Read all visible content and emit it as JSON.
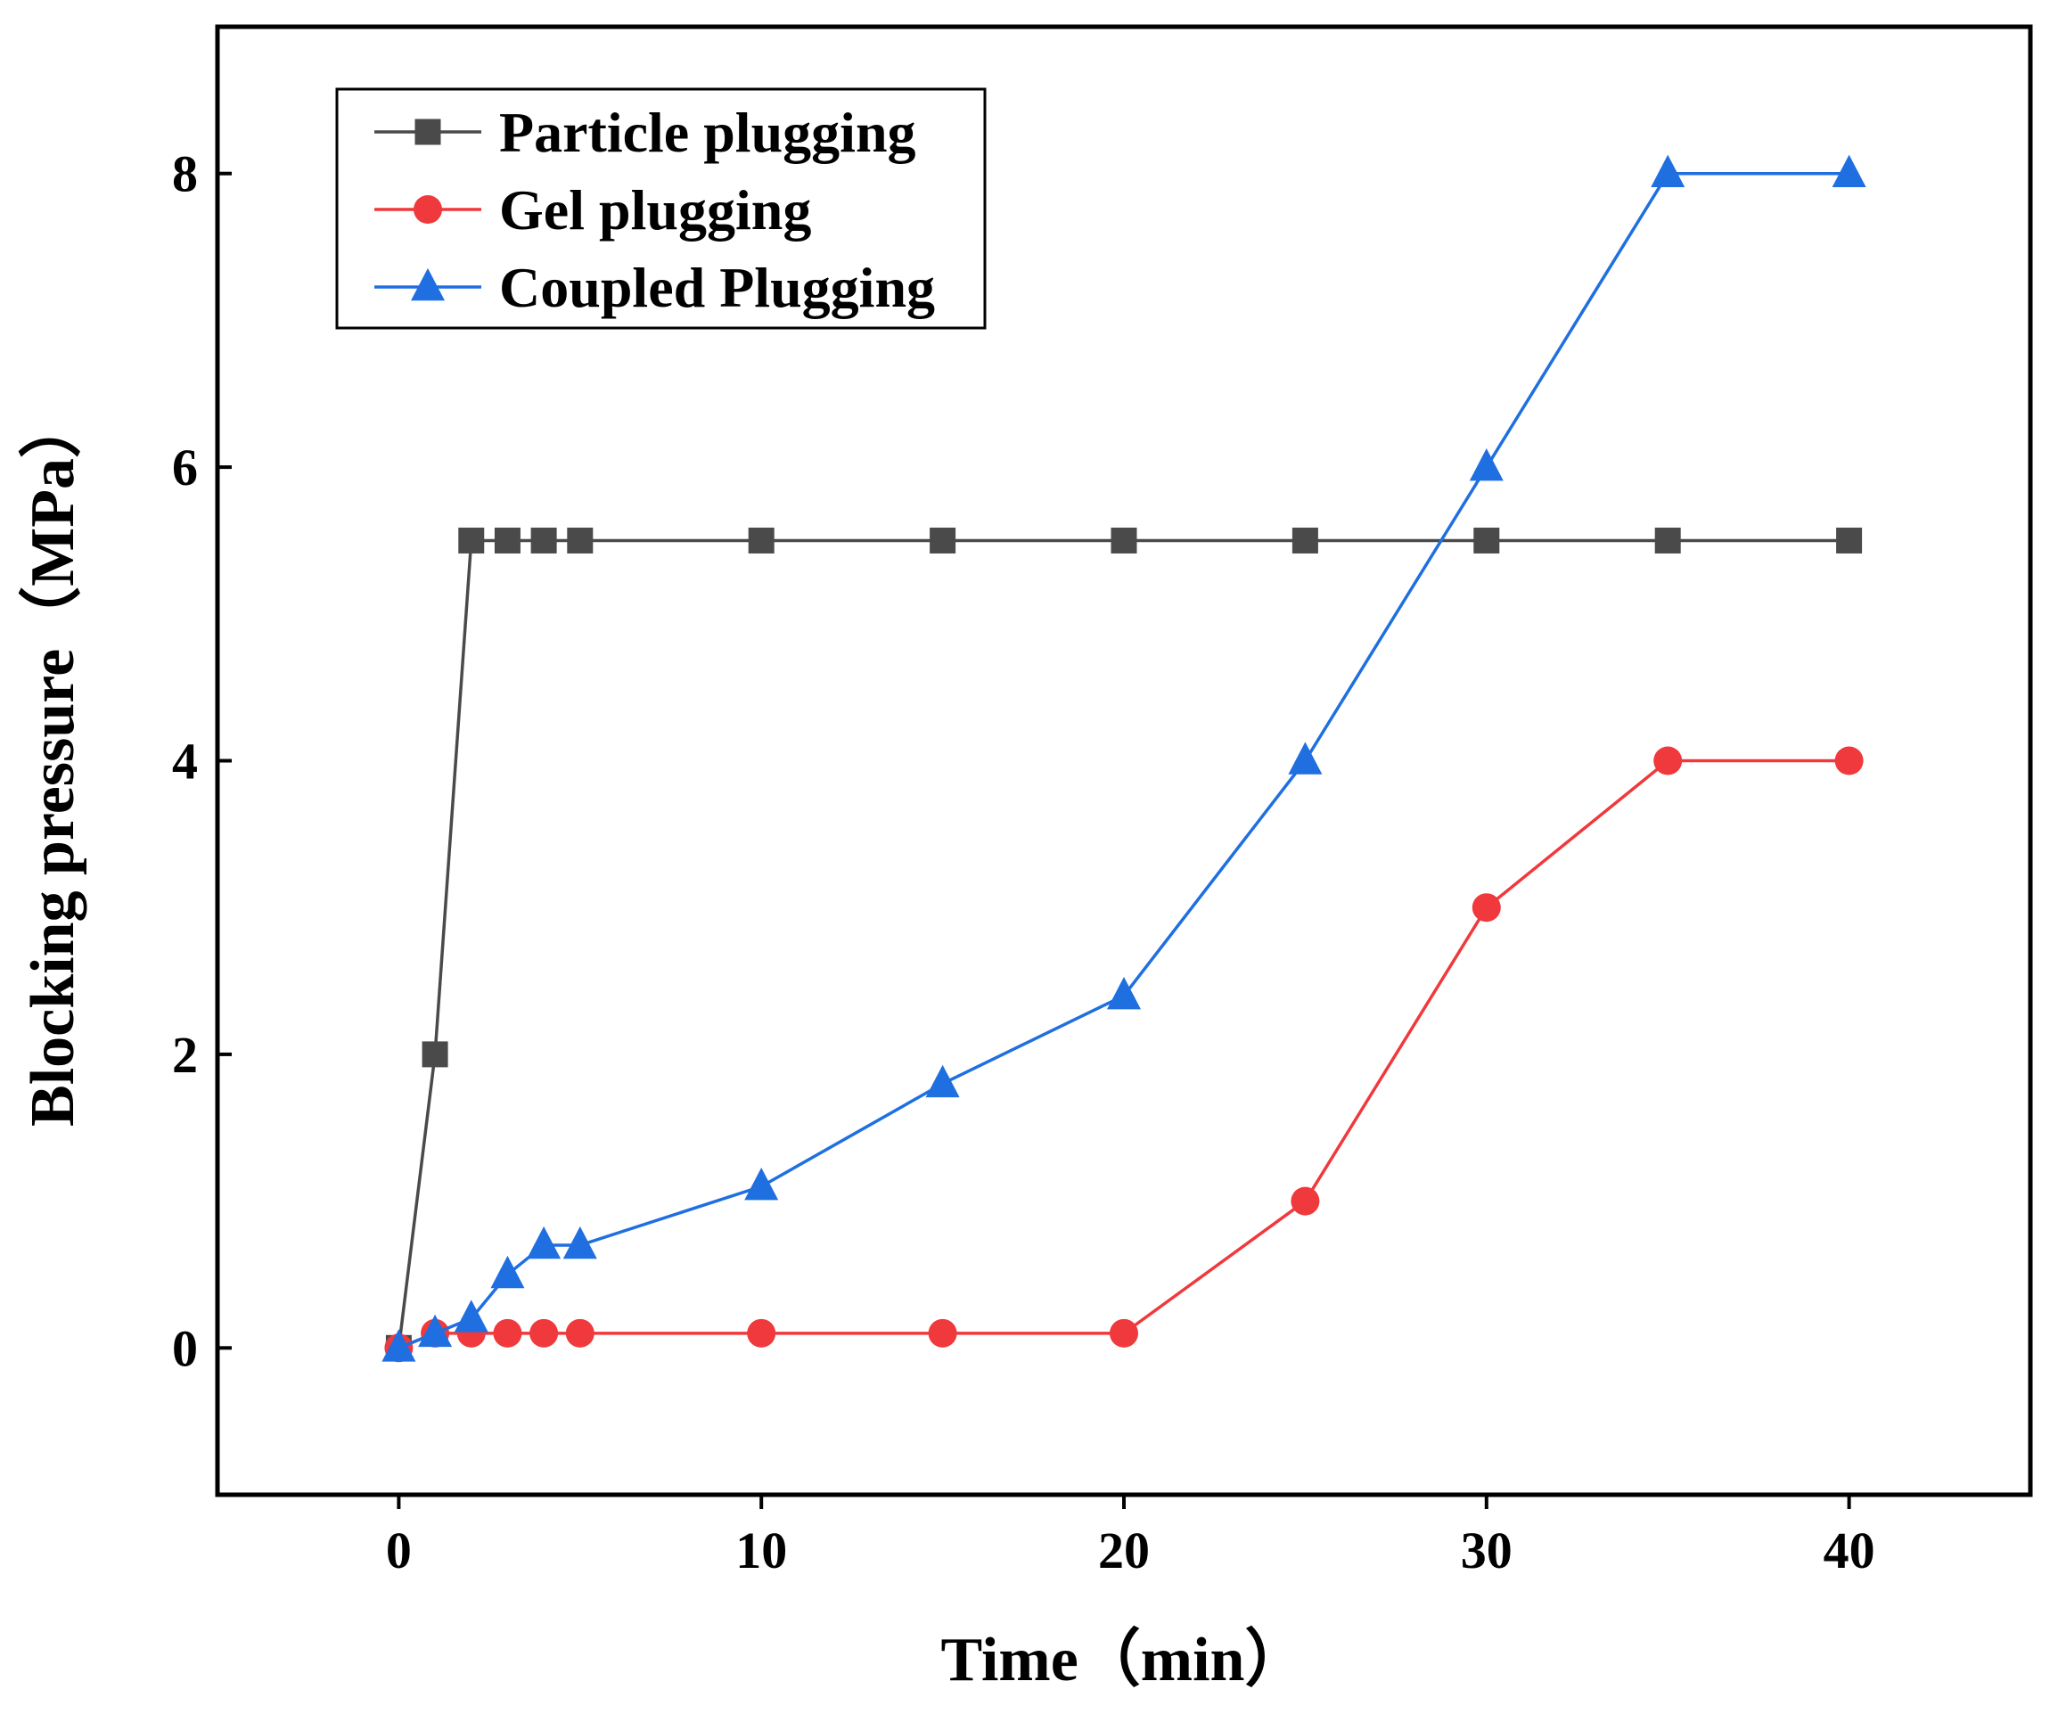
{
  "chart_data": {
    "type": "line",
    "title": "",
    "xlabel": "Time（min）",
    "ylabel": "Blocking pressure（MPa）",
    "xlim": [
      -5,
      45
    ],
    "ylim": [
      -1,
      9
    ],
    "xticks": [
      0,
      10,
      20,
      30,
      40
    ],
    "yticks": [
      0,
      2,
      4,
      6,
      8
    ],
    "xtick_labels": [
      "0",
      "10",
      "20",
      "30",
      "40"
    ],
    "ytick_labels": [
      "0",
      "2",
      "4",
      "6",
      "8"
    ],
    "grid": false,
    "legend_position": "top-left",
    "series": [
      {
        "name": "Particle plugging",
        "color": "#4a4a4a",
        "marker": "square",
        "x": [
          0,
          1,
          2,
          3,
          4,
          5,
          10,
          15,
          20,
          25,
          30,
          35,
          40
        ],
        "y": [
          0,
          2,
          5.5,
          5.5,
          5.5,
          5.5,
          5.5,
          5.5,
          5.5,
          5.5,
          5.5,
          5.5,
          5.5
        ]
      },
      {
        "name": "Gel plugging",
        "color": "#f0393c",
        "marker": "circle",
        "x": [
          0,
          1,
          2,
          3,
          4,
          5,
          10,
          15,
          20,
          25,
          30,
          35,
          40
        ],
        "y": [
          0,
          0.1,
          0.1,
          0.1,
          0.1,
          0.1,
          0.1,
          0.1,
          0.1,
          1,
          3,
          4,
          4
        ]
      },
      {
        "name": "Coupled Plugging",
        "color": "#1f6fe0",
        "marker": "triangle",
        "x": [
          0,
          1,
          2,
          3,
          4,
          5,
          10,
          15,
          20,
          25,
          30,
          35,
          40
        ],
        "y": [
          0,
          0.1,
          0.2,
          0.5,
          0.7,
          0.7,
          1.1,
          1.8,
          2.4,
          4,
          6,
          8,
          8
        ]
      }
    ]
  }
}
